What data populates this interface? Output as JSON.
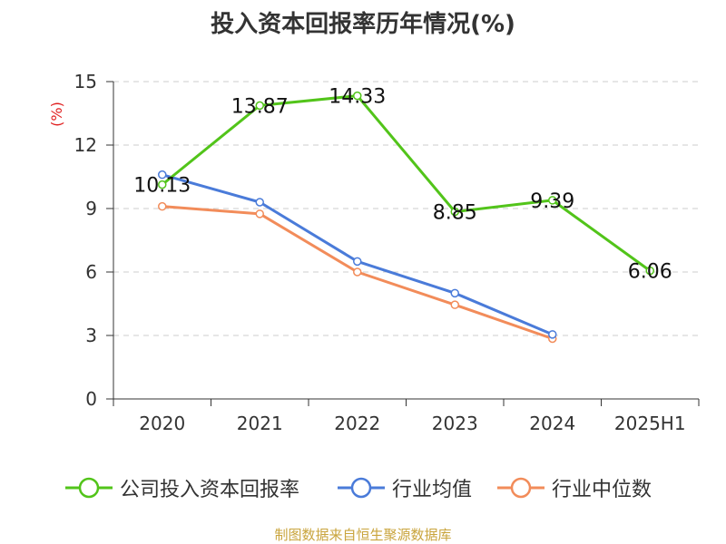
{
  "chart_data": {
    "type": "line",
    "title": "投入资本回报率历年情况(%)",
    "ylabel": "(%)",
    "categories": [
      "2020",
      "2021",
      "2022",
      "2023",
      "2024",
      "2025H1"
    ],
    "ylim": [
      0,
      15
    ],
    "yticks": [
      "0",
      "3",
      "6",
      "9",
      "12",
      "15"
    ],
    "grid": true,
    "legend_position": "bottom",
    "series": [
      {
        "name": "公司投入资本回报率",
        "color": "#52c41a",
        "values": [
          10.13,
          13.87,
          14.33,
          8.85,
          9.39,
          6.06
        ],
        "labels": [
          "10.13",
          "13.87",
          "14.33",
          "8.85",
          "9.39",
          "6.06"
        ]
      },
      {
        "name": "行业均值",
        "color": "#4a7bd9",
        "values": [
          10.6,
          9.3,
          6.5,
          5.0,
          3.05,
          null
        ]
      },
      {
        "name": "行业中位数",
        "color": "#f28c5a",
        "values": [
          9.1,
          8.75,
          6.0,
          4.45,
          2.85,
          null
        ]
      }
    ]
  },
  "source": "制图数据来自恒生聚源数据库"
}
